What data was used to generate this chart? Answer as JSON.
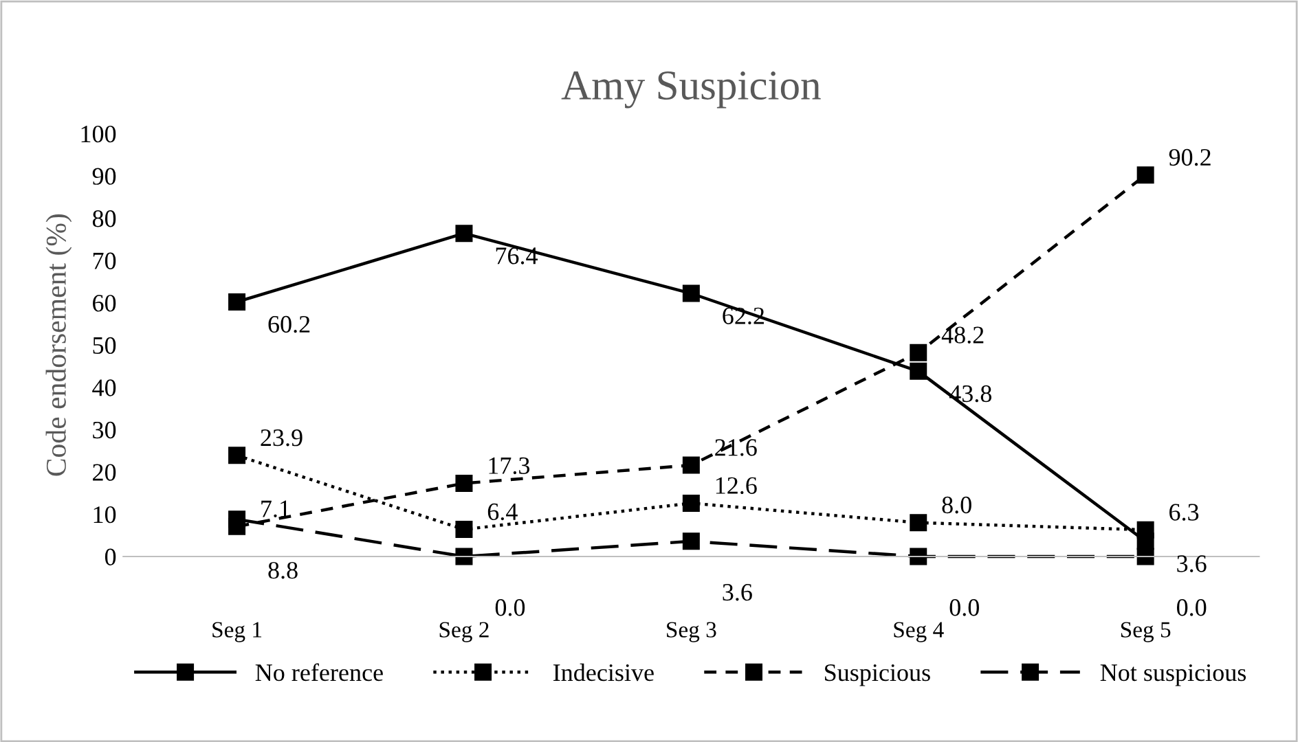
{
  "chart_data": {
    "type": "line",
    "title": "Amy Suspicion",
    "ylabel": "Code endorsement (%)",
    "categories": [
      "Seg 1",
      "Seg 2",
      "Seg 3",
      "Seg 4",
      "Seg 5"
    ],
    "series": [
      {
        "name": "No reference",
        "color": "#000000",
        "line_style": "solid",
        "values": [
          60.2,
          76.4,
          62.2,
          43.8,
          3.6
        ],
        "value_labels": [
          "60.2",
          "76.4",
          "62.2",
          "43.8",
          "3.6"
        ]
      },
      {
        "name": "Indecisive",
        "color": "#000000",
        "line_style": "dotted",
        "values": [
          23.9,
          6.4,
          12.6,
          8.0,
          6.3
        ],
        "value_labels": [
          "23.9",
          "6.4",
          "12.6",
          "8.0",
          "6.3"
        ]
      },
      {
        "name": "Suspicious",
        "color": "#000000",
        "line_style": "dashed",
        "values": [
          7.1,
          17.3,
          21.6,
          48.2,
          90.2
        ],
        "value_labels": [
          "7.1",
          "17.3",
          "21.6",
          "48.2",
          "90.2"
        ]
      },
      {
        "name": "Not suspicious",
        "color": "#000000",
        "line_style": "longdash",
        "values": [
          8.8,
          0.0,
          3.6,
          0.0,
          0.0
        ],
        "value_labels": [
          "8.8",
          "0.0",
          "3.6",
          "0.0",
          "0.0"
        ]
      }
    ],
    "ylim": [
      0,
      100
    ],
    "yticks": [
      0,
      10,
      20,
      30,
      40,
      50,
      60,
      70,
      80,
      90,
      100
    ],
    "marker": "square",
    "grid": false,
    "legend": "bottom"
  }
}
